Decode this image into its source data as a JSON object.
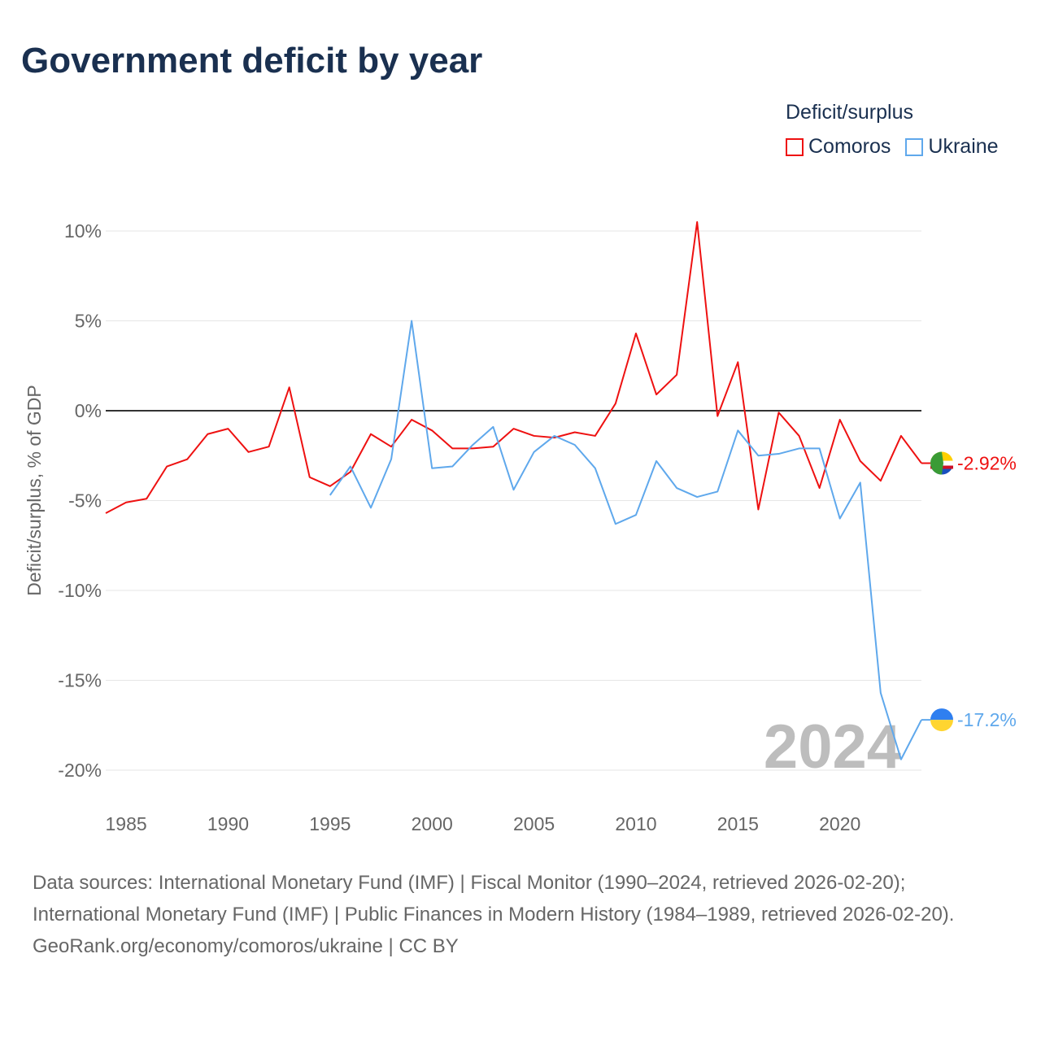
{
  "title": "Government deficit by year",
  "legend": {
    "title": "Deficit/surplus",
    "items": [
      {
        "name": "Comoros",
        "color": "#ee1111"
      },
      {
        "name": "Ukraine",
        "color": "#5fa8ec"
      }
    ]
  },
  "watermark_year": "2024",
  "footer": {
    "sources": "Data sources: International Monetary Fund (IMF) | Fiscal Monitor (1990–2024, retrieved 2026-02-20); International Monetary Fund (IMF) | Public Finances in Modern History (1984–1989, retrieved 2026-02-20).",
    "credit": "GeoRank.org/economy/comoros/ukraine | CC BY"
  },
  "chart_data": {
    "type": "line",
    "title": "Government deficit by year",
    "xlabel": "",
    "ylabel": "Deficit/surplus, % of GDP",
    "xlim": [
      1984,
      2024
    ],
    "ylim": [
      -21,
      12
    ],
    "x_ticks": [
      1985,
      1990,
      1995,
      2000,
      2005,
      2010,
      2015,
      2020
    ],
    "y_ticks": [
      10,
      5,
      0,
      -5,
      -10,
      -15,
      -20
    ],
    "y_tick_labels": [
      "10%",
      "5%",
      "0%",
      "-5%",
      "-10%",
      "-15%",
      "-20%"
    ],
    "grid": true,
    "legend_position": "top-right",
    "series": [
      {
        "name": "Comoros",
        "color": "#ee1111",
        "end_label": "-2.92%",
        "x": [
          1984,
          1985,
          1986,
          1987,
          1988,
          1989,
          1990,
          1991,
          1992,
          1993,
          1994,
          1995,
          1996,
          1997,
          1998,
          1999,
          2000,
          2001,
          2002,
          2003,
          2004,
          2005,
          2006,
          2007,
          2008,
          2009,
          2010,
          2011,
          2012,
          2013,
          2014,
          2015,
          2016,
          2017,
          2018,
          2019,
          2020,
          2021,
          2022,
          2023,
          2024
        ],
        "values": [
          -5.7,
          -5.1,
          -4.9,
          -3.1,
          -2.7,
          -1.3,
          -1.0,
          -2.3,
          -2.0,
          1.3,
          -3.7,
          -4.2,
          -3.4,
          -1.3,
          -2.0,
          -0.5,
          -1.1,
          -2.1,
          -2.1,
          -2.0,
          -1.0,
          -1.4,
          -1.5,
          -1.2,
          -1.4,
          0.4,
          4.3,
          0.9,
          2.0,
          10.5,
          -0.3,
          2.7,
          -5.5,
          -0.1,
          -1.4,
          -4.3,
          -0.5,
          -2.8,
          -3.9,
          -1.4,
          -2.92
        ]
      },
      {
        "name": "Ukraine",
        "color": "#5fa8ec",
        "end_label": "-17.2%",
        "x": [
          1995,
          1996,
          1997,
          1998,
          1999,
          2000,
          2001,
          2002,
          2003,
          2004,
          2005,
          2006,
          2007,
          2008,
          2009,
          2010,
          2011,
          2012,
          2013,
          2014,
          2015,
          2016,
          2017,
          2018,
          2019,
          2020,
          2021,
          2022,
          2023,
          2024
        ],
        "values": [
          -4.7,
          -3.1,
          -5.4,
          -2.7,
          5.0,
          -3.2,
          -3.1,
          -1.9,
          -0.9,
          -4.4,
          -2.3,
          -1.4,
          -1.9,
          -3.2,
          -6.3,
          -5.8,
          -2.8,
          -4.3,
          -4.8,
          -4.5,
          -1.1,
          -2.5,
          -2.4,
          -2.1,
          -2.1,
          -6.0,
          -4.0,
          -15.7,
          -19.4,
          -17.2
        ]
      }
    ]
  }
}
